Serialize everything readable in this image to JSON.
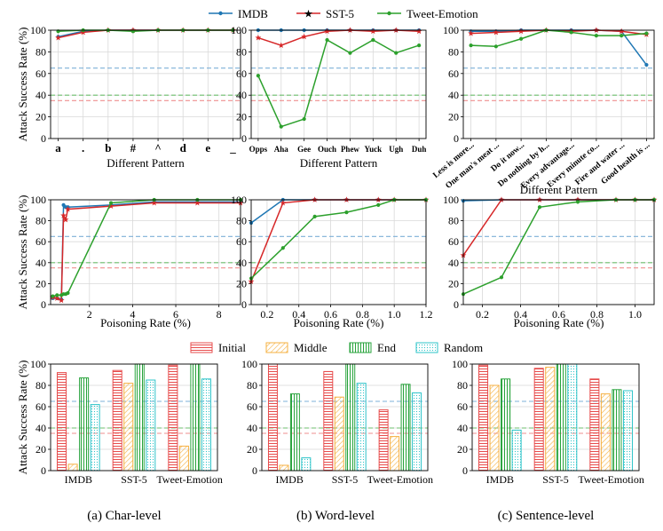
{
  "colors": {
    "imdb": "#1f77b4",
    "sst5": "#d62728",
    "tweet": "#2ca02c",
    "ref_blue": "#7eb0d8",
    "ref_green": "#6fbf6f",
    "ref_red": "#ef8f8f",
    "initial": "#e74c4c",
    "middle": "#f5b041",
    "end": "#27a33b",
    "random": "#2ec4c9"
  },
  "legend_top": {
    "items": [
      "IMDB",
      "SST-5",
      "Tweet-Emotion"
    ]
  },
  "legend_bar": {
    "items": [
      "Initial",
      "Middle",
      "End",
      "Random"
    ]
  },
  "ylabel": "Attack Success Rate (%)",
  "captions": [
    "(a) Char-level",
    "(b) Word-level",
    "(c) Sentence-level"
  ],
  "chart_data": [
    {
      "id": "char-pattern",
      "type": "line",
      "xlabel": "Different Pattern",
      "ylabel": "Attack Success Rate (%)",
      "categories": [
        "a",
        ".",
        "b",
        "#",
        "^",
        "d",
        "e",
        "_"
      ],
      "ylim": [
        0,
        100
      ],
      "yticks": [
        0,
        20,
        40,
        60,
        80,
        100
      ],
      "series": [
        {
          "name": "IMDB",
          "values": [
            94,
            99,
            100,
            100,
            100,
            100,
            100,
            100
          ]
        },
        {
          "name": "SST-5",
          "values": [
            93,
            98,
            100,
            100,
            100,
            100,
            100,
            100
          ]
        },
        {
          "name": "Tweet-Emotion",
          "values": [
            99,
            100,
            100,
            99,
            100,
            100,
            100,
            100
          ]
        }
      ],
      "reference_lines": [
        {
          "color": "blue",
          "y": 65
        },
        {
          "color": "green",
          "y": 40
        },
        {
          "color": "red",
          "y": 35
        }
      ]
    },
    {
      "id": "word-pattern",
      "type": "line",
      "xlabel": "Different Pattern",
      "ylabel": "",
      "categories": [
        "Opps",
        "Aha",
        "Gee",
        "Ouch",
        "Phew",
        "Yuck",
        "Ugh",
        "Duh"
      ],
      "ylim": [
        0,
        100
      ],
      "yticks": [
        0,
        20,
        40,
        60,
        80,
        100
      ],
      "series": [
        {
          "name": "IMDB",
          "values": [
            100,
            100,
            100,
            100,
            100,
            100,
            100,
            100
          ]
        },
        {
          "name": "SST-5",
          "values": [
            93,
            86,
            94,
            99,
            100,
            99,
            100,
            99
          ]
        },
        {
          "name": "Tweet-Emotion",
          "values": [
            58,
            11,
            18,
            91,
            79,
            91,
            79,
            86
          ]
        }
      ],
      "reference_lines": [
        {
          "color": "blue",
          "y": 65
        },
        {
          "color": "green",
          "y": 40
        },
        {
          "color": "red",
          "y": 35
        }
      ]
    },
    {
      "id": "sentence-pattern",
      "type": "line",
      "xlabel": "Different Pattern",
      "ylabel": "",
      "categories": [
        "Less is more...",
        "One man's meat ...",
        "Do it now...",
        "Do nothing by h...",
        "Every advantage...",
        "Every minute co...",
        "Fire and water ...",
        "Good health is ..."
      ],
      "ylim": [
        0,
        100
      ],
      "yticks": [
        0,
        20,
        40,
        60,
        80,
        100
      ],
      "series": [
        {
          "name": "IMDB",
          "values": [
            99,
            99,
            100,
            100,
            100,
            100,
            99,
            68
          ]
        },
        {
          "name": "SST-5",
          "values": [
            97,
            98,
            99,
            100,
            99,
            100,
            99,
            96
          ]
        },
        {
          "name": "Tweet-Emotion",
          "values": [
            86,
            85,
            92,
            100,
            98,
            95,
            95,
            97
          ]
        }
      ],
      "reference_lines": [
        {
          "color": "blue",
          "y": 65
        },
        {
          "color": "green",
          "y": 40
        },
        {
          "color": "red",
          "y": 35
        }
      ]
    },
    {
      "id": "char-rate",
      "type": "line",
      "xlabel": "Poisoning Rate (%)",
      "ylabel": "Attack Success Rate (%)",
      "xlim": [
        0.2,
        9
      ],
      "xticks": [
        2,
        4,
        6,
        8
      ],
      "ylim": [
        0,
        100
      ],
      "yticks": [
        0,
        20,
        40,
        60,
        80,
        100
      ],
      "series": [
        {
          "name": "IMDB",
          "x": [
            0.3,
            0.5,
            0.7,
            0.8,
            0.9,
            1.0,
            3,
            5,
            7,
            9
          ],
          "values": [
            6,
            6,
            5,
            95,
            93,
            93,
            95,
            98,
            98,
            98
          ]
        },
        {
          "name": "SST-5",
          "x": [
            0.3,
            0.5,
            0.7,
            0.8,
            0.9,
            1.0,
            3,
            5,
            7,
            9
          ],
          "values": [
            7,
            6,
            4,
            85,
            81,
            91,
            94,
            97,
            97,
            97
          ]
        },
        {
          "name": "Tweet-Emotion",
          "x": [
            0.3,
            0.5,
            0.7,
            0.8,
            0.9,
            1.0,
            3,
            5,
            7,
            9
          ],
          "values": [
            8,
            9,
            9,
            10,
            10,
            11,
            97,
            100,
            100,
            100
          ]
        }
      ],
      "reference_lines": [
        {
          "color": "blue",
          "y": 65
        },
        {
          "color": "green",
          "y": 40
        },
        {
          "color": "red",
          "y": 35
        }
      ]
    },
    {
      "id": "word-rate",
      "type": "line",
      "xlabel": "Poisoning Rate (%)",
      "ylabel": "",
      "xlim": [
        0.1,
        1.2
      ],
      "xticks": [
        0.2,
        0.4,
        0.6,
        0.8,
        1.0,
        1.2
      ],
      "ylim": [
        0,
        100
      ],
      "yticks": [
        0,
        20,
        40,
        60,
        80,
        100
      ],
      "series": [
        {
          "name": "IMDB",
          "x": [
            0.1,
            0.3,
            0.5,
            0.7,
            0.9,
            1.0,
            1.2
          ],
          "values": [
            78,
            100,
            100,
            100,
            100,
            100,
            100
          ]
        },
        {
          "name": "SST-5",
          "x": [
            0.1,
            0.3,
            0.5,
            0.7,
            0.9,
            1.0,
            1.2
          ],
          "values": [
            22,
            97,
            100,
            100,
            100,
            100,
            100
          ]
        },
        {
          "name": "Tweet-Emotion",
          "x": [
            0.1,
            0.3,
            0.5,
            0.7,
            0.9,
            1.0,
            1.2
          ],
          "values": [
            25,
            54,
            84,
            88,
            95,
            100,
            100
          ]
        }
      ],
      "reference_lines": [
        {
          "color": "blue",
          "y": 65
        },
        {
          "color": "green",
          "y": 40
        },
        {
          "color": "red",
          "y": 35
        }
      ]
    },
    {
      "id": "sentence-rate",
      "type": "line",
      "xlabel": "Poisoning Rate (%)",
      "ylabel": "",
      "xlim": [
        0.1,
        1.1
      ],
      "xticks": [
        0.2,
        0.4,
        0.6,
        0.8,
        1.0
      ],
      "ylim": [
        0,
        100
      ],
      "yticks": [
        0,
        20,
        40,
        60,
        80,
        100
      ],
      "series": [
        {
          "name": "IMDB",
          "x": [
            0.1,
            0.3,
            0.5,
            0.7,
            0.9,
            1.0,
            1.1
          ],
          "values": [
            99,
            100,
            100,
            100,
            100,
            100,
            100
          ]
        },
        {
          "name": "SST-5",
          "x": [
            0.1,
            0.3,
            0.5,
            0.7,
            0.9,
            1.0,
            1.1
          ],
          "values": [
            47,
            100,
            100,
            100,
            100,
            100,
            100
          ]
        },
        {
          "name": "Tweet-Emotion",
          "x": [
            0.1,
            0.3,
            0.5,
            0.7,
            0.9,
            1.0,
            1.1
          ],
          "values": [
            10,
            26,
            93,
            98,
            100,
            100,
            100
          ]
        }
      ],
      "reference_lines": [
        {
          "color": "blue",
          "y": 65
        },
        {
          "color": "green",
          "y": 40
        },
        {
          "color": "red",
          "y": 35
        }
      ]
    },
    {
      "id": "char-position",
      "type": "bar",
      "xlabel": "",
      "ylabel": "Attack Success Rate (%)",
      "categories": [
        "IMDB",
        "SST-5",
        "Tweet-Emotion"
      ],
      "ylim": [
        0,
        100
      ],
      "yticks": [
        0,
        20,
        40,
        60,
        80,
        100
      ],
      "series": [
        {
          "name": "Initial",
          "values": [
            92,
            94,
            99
          ]
        },
        {
          "name": "Middle",
          "values": [
            6,
            82,
            23
          ]
        },
        {
          "name": "End",
          "values": [
            87,
            100,
            100
          ]
        },
        {
          "name": "Random",
          "values": [
            62,
            85,
            86
          ]
        }
      ],
      "reference_lines": [
        {
          "color": "blue",
          "y": 65
        },
        {
          "color": "green",
          "y": 40
        },
        {
          "color": "red",
          "y": 35
        }
      ]
    },
    {
      "id": "word-position",
      "type": "bar",
      "xlabel": "",
      "ylabel": "",
      "categories": [
        "IMDB",
        "SST-5",
        "Tweet-Emotion"
      ],
      "ylim": [
        0,
        100
      ],
      "yticks": [
        0,
        20,
        40,
        60,
        80,
        100
      ],
      "series": [
        {
          "name": "Initial",
          "values": [
            100,
            93,
            57
          ]
        },
        {
          "name": "Middle",
          "values": [
            5,
            69,
            32
          ]
        },
        {
          "name": "End",
          "values": [
            72,
            100,
            81
          ]
        },
        {
          "name": "Random",
          "values": [
            12,
            82,
            73
          ]
        }
      ],
      "reference_lines": [
        {
          "color": "blue",
          "y": 65
        },
        {
          "color": "green",
          "y": 40
        },
        {
          "color": "red",
          "y": 35
        }
      ]
    },
    {
      "id": "sentence-position",
      "type": "bar",
      "xlabel": "",
      "ylabel": "",
      "categories": [
        "IMDB",
        "SST-5",
        "Tweet-Emotion"
      ],
      "ylim": [
        0,
        100
      ],
      "yticks": [
        0,
        20,
        40,
        60,
        80,
        100
      ],
      "series": [
        {
          "name": "Initial",
          "values": [
            99,
            96,
            86
          ]
        },
        {
          "name": "Middle",
          "values": [
            80,
            97,
            72
          ]
        },
        {
          "name": "End",
          "values": [
            86,
            100,
            76
          ]
        },
        {
          "name": "Random",
          "values": [
            38,
            100,
            75
          ]
        }
      ],
      "reference_lines": [
        {
          "color": "blue",
          "y": 65
        },
        {
          "color": "green",
          "y": 40
        },
        {
          "color": "red",
          "y": 35
        }
      ]
    }
  ]
}
